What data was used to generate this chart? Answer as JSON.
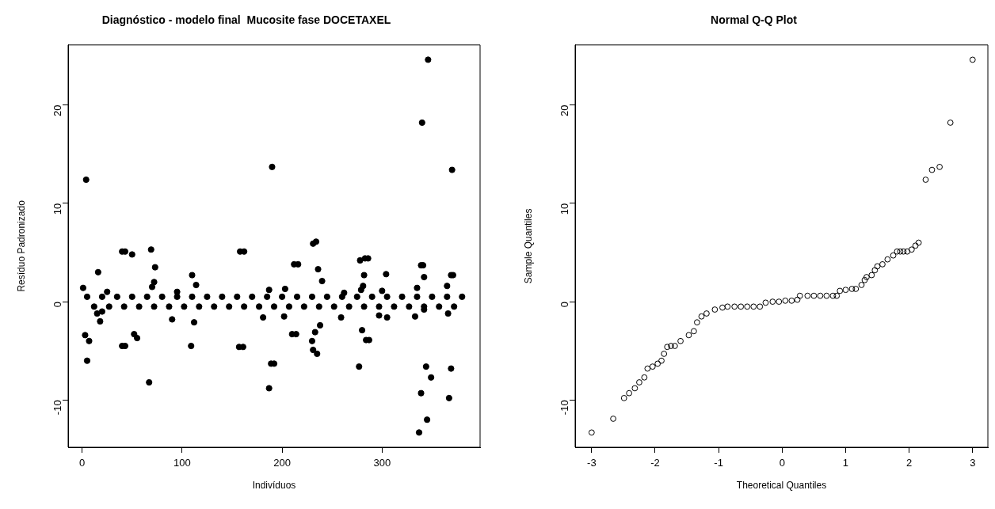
{
  "chart_data": [
    {
      "type": "scatter",
      "title": "Diagnóstico - modelo final  Mucosite fase DOCETAXEL",
      "xlabel": "Indivíduos",
      "ylabel": "Resíduo Padronizado",
      "xlim": [
        -14,
        398
      ],
      "ylim": [
        -14.8,
        26.1
      ],
      "xticks": [
        0,
        100,
        200,
        300
      ],
      "yticks": [
        -10,
        0,
        10,
        20
      ],
      "marker": "circle",
      "series": [
        {
          "color": "#000000",
          "x": [
            5,
            20,
            35,
            50,
            65,
            80,
            95,
            110,
            125,
            140,
            155,
            170,
            185,
            200,
            215,
            230,
            245,
            260,
            275,
            290,
            305,
            320,
            335,
            350,
            365,
            380,
            12,
            27,
            42,
            57,
            72,
            87,
            102,
            117,
            132,
            147,
            162,
            177,
            192,
            207,
            222,
            237,
            252,
            267,
            282,
            297,
            312,
            327,
            342,
            357,
            372,
            1,
            3,
            4,
            5,
            7,
            16,
            15,
            18,
            20,
            25,
            40,
            43,
            40,
            43,
            50,
            52,
            55,
            67,
            69,
            70,
            72,
            73,
            90,
            95,
            109,
            110,
            112,
            114,
            158,
            162,
            157,
            161,
            181,
            187,
            187,
            190,
            189,
            192,
            203,
            202,
            212,
            216,
            210,
            214,
            230,
            231,
            231,
            233,
            234,
            235,
            236,
            238,
            240,
            259,
            262,
            277,
            278,
            279,
            280,
            281,
            282,
            283,
            286,
            284,
            287,
            297,
            300,
            304,
            305,
            333,
            335,
            337,
            339,
            339,
            341,
            340,
            342,
            342,
            344,
            345,
            346,
            349,
            365,
            366,
            367,
            369,
            369,
            371,
            370
          ],
          "values": [
            0.5,
            0.5,
            0.5,
            0.5,
            0.5,
            0.5,
            0.5,
            0.5,
            0.5,
            0.5,
            0.5,
            0.5,
            0.5,
            0.5,
            0.5,
            0.5,
            0.5,
            0.5,
            0.5,
            0.5,
            0.5,
            0.5,
            0.5,
            0.5,
            0.5,
            0.5,
            -0.5,
            -0.5,
            -0.5,
            -0.5,
            -0.5,
            -0.5,
            -0.5,
            -0.5,
            -0.5,
            -0.5,
            -0.5,
            -0.5,
            -0.5,
            -0.5,
            -0.5,
            -0.5,
            -0.5,
            -0.5,
            -0.5,
            -0.5,
            -0.5,
            -0.5,
            -0.5,
            -0.5,
            -0.5,
            1.4,
            -3.4,
            12.4,
            -6,
            -4,
            3,
            -1.2,
            -2,
            -1,
            1,
            5.1,
            5.1,
            -4.5,
            -4.5,
            4.8,
            -3.3,
            -3.7,
            -8.2,
            5.3,
            1.5,
            2,
            3.5,
            -1.8,
            1,
            -4.5,
            2.7,
            -2.1,
            1.7,
            5.1,
            5.1,
            -4.6,
            -4.6,
            -1.6,
            1.2,
            -8.8,
            13.7,
            -6.3,
            -6.3,
            1.3,
            -1.5,
            3.8,
            3.8,
            -3.3,
            -3.3,
            -4,
            5.9,
            -4.9,
            -3.1,
            6.1,
            -5.3,
            3.3,
            -2.4,
            2.1,
            -1.6,
            0.9,
            -6.6,
            4.2,
            1.2,
            -2.9,
            1.6,
            2.7,
            4.4,
            4.4,
            -3.9,
            -3.9,
            -1.4,
            1.1,
            2.8,
            -1.6,
            -1.5,
            1.4,
            -13.3,
            -9.3,
            3.7,
            3.7,
            18.2,
            2.5,
            -0.8,
            -6.6,
            -12,
            24.6,
            -7.7,
            1.6,
            -1.2,
            -9.8,
            -6.8,
            2.7,
            2.7,
            13.4
          ]
        }
      ]
    },
    {
      "type": "scatter",
      "title": "Normal Q-Q Plot",
      "xlabel": "Theoretical Quantiles",
      "ylabel": "Sample Quantiles",
      "xlim": [
        -3.26,
        3.24
      ],
      "ylim": [
        -14.8,
        26.1
      ],
      "xticks": [
        -3,
        -2,
        -1,
        0,
        1,
        2,
        3
      ],
      "yticks": [
        -10,
        0,
        10,
        20
      ],
      "marker": "circle",
      "series": [
        {
          "color": "#000000",
          "x": [
            -3,
            -2.66,
            -2.49,
            -2.41,
            -2.32,
            -2.25,
            -2.17,
            -2.12,
            -2.04,
            -1.96,
            -1.9,
            -1.86,
            -1.81,
            -1.75,
            -1.69,
            -1.6,
            -1.47,
            -1.39,
            -1.34,
            -1.27,
            -1.19,
            -1.06,
            -0.94,
            -0.86,
            -0.75,
            -0.65,
            -0.55,
            -0.45,
            -0.35,
            -0.26,
            -0.15,
            -0.05,
            0.05,
            0.15,
            0.24,
            0.28,
            0.4,
            0.5,
            0.6,
            0.7,
            0.8,
            0.86,
            0.91,
            1,
            1.1,
            1.16,
            1.25,
            1.3,
            1.33,
            1.41,
            1.46,
            1.5,
            1.58,
            1.66,
            1.75,
            1.81,
            1.86,
            1.91,
            1.97,
            2.04,
            2.1,
            2.15,
            2.26,
            2.36,
            2.48,
            2.65,
            3
          ],
          "values": [
            -13.3,
            -11.9,
            -9.8,
            -9.3,
            -8.8,
            -8.2,
            -7.7,
            -6.8,
            -6.6,
            -6.3,
            -6,
            -5.3,
            -4.6,
            -4.5,
            -4.5,
            -4,
            -3.4,
            -3,
            -2.1,
            -1.5,
            -1.2,
            -0.8,
            -0.6,
            -0.5,
            -0.5,
            -0.5,
            -0.5,
            -0.5,
            -0.5,
            -0.1,
            0,
            0,
            0.1,
            0.1,
            0.2,
            0.6,
            0.6,
            0.6,
            0.6,
            0.6,
            0.6,
            0.6,
            1.1,
            1.2,
            1.3,
            1.3,
            1.7,
            2.2,
            2.5,
            2.7,
            3.2,
            3.6,
            3.8,
            4.3,
            4.7,
            5.1,
            5.1,
            5.1,
            5.1,
            5.3,
            5.7,
            6,
            12.4,
            13.4,
            13.7,
            18.2,
            24.6
          ]
        }
      ]
    }
  ]
}
